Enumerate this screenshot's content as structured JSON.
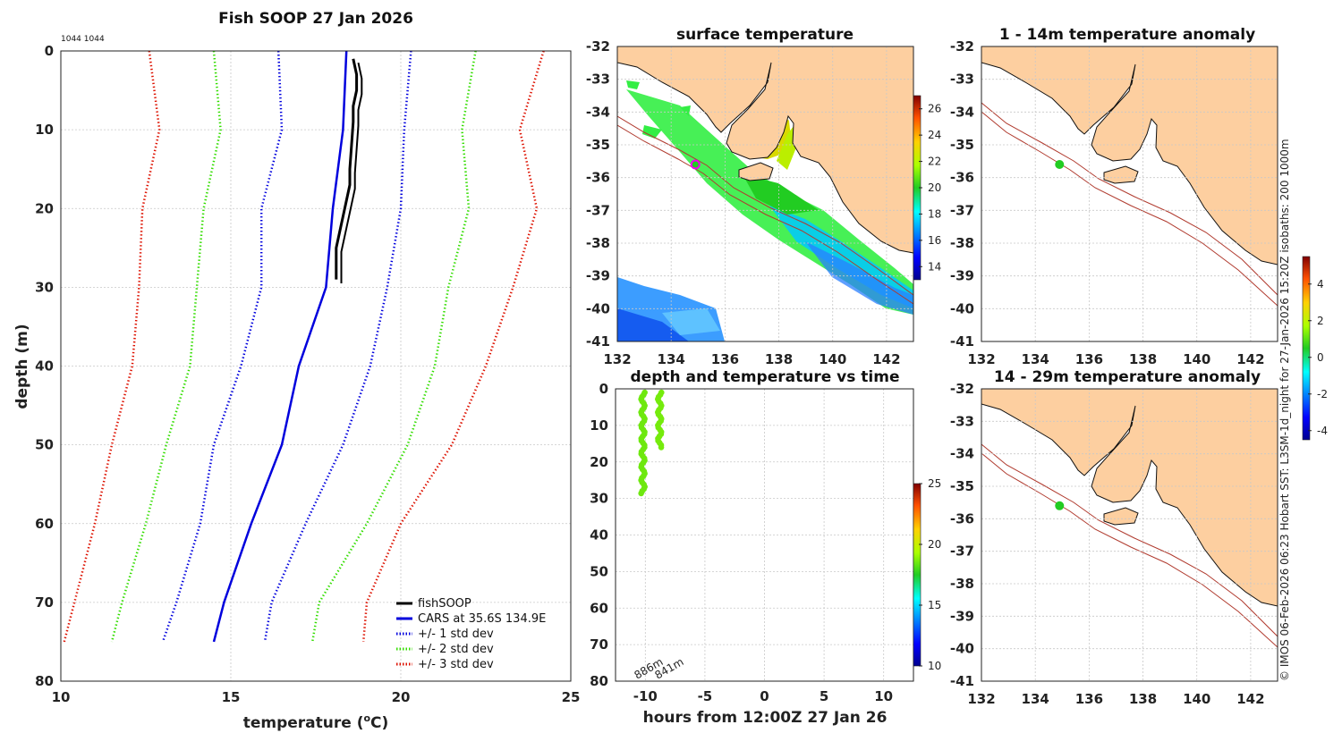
{
  "credit": "© IMOS 06-Feb-2026 06:23 Hobart SST: L3SM-1d_night for 27-Jan-2026 15:20Z isobaths: 200  1000m",
  "colors": {
    "fishsoop": "#000000",
    "cars": "#0000dd",
    "std1": "#0000dd",
    "std2": "#33dd00",
    "std3": "#dd1100",
    "land": "#fdcfa0",
    "isobath": "#b03a2e",
    "marker_fill": "#22cc22",
    "marker_ring": "#ee00ee"
  },
  "chart_data": [
    {
      "id": "profile",
      "type": "line",
      "title": "Fish SOOP 27 Jan 2026",
      "corner_label": "1044 1044",
      "xlabel_main": "temperature (",
      "xlabel_sup": "o",
      "xlabel_tail": "C)",
      "ylabel": "depth (m)",
      "xlim": [
        10,
        25
      ],
      "ylim": [
        80,
        0
      ],
      "xticks": [
        "10",
        "15",
        "20",
        "25"
      ],
      "yticks": [
        "0",
        "10",
        "20",
        "30",
        "40",
        "50",
        "60",
        "70",
        "80"
      ],
      "legend_position": "bottom-right",
      "legend": [
        "fishSOOP",
        "CARS at 35.6S 134.9E",
        "+/- 1 std dev",
        "+/- 2 std dev",
        "+/- 3 std dev"
      ],
      "depth": [
        0,
        10,
        20,
        30,
        40,
        50,
        60,
        70,
        75
      ],
      "series": [
        {
          "name": "CARS at 35.6S 134.9E",
          "style": "solid",
          "values": [
            18.4,
            18.3,
            18.0,
            17.8,
            17.0,
            16.5,
            15.6,
            14.8,
            14.5
          ]
        },
        {
          "name": "+/- 1 std dev (upper)",
          "style": "dotted",
          "values": [
            20.3,
            20.1,
            20.0,
            19.6,
            19.1,
            18.3,
            17.2,
            16.2,
            16.0
          ]
        },
        {
          "name": "+/- 1 std dev (lower)",
          "style": "dotted",
          "values": [
            16.4,
            16.5,
            15.9,
            15.9,
            15.3,
            14.5,
            14.1,
            13.4,
            13.0
          ]
        },
        {
          "name": "+/- 2 std dev (upper)",
          "style": "dotted",
          "values": [
            22.2,
            21.8,
            22.0,
            21.4,
            21.0,
            20.2,
            19.0,
            17.6,
            17.4
          ]
        },
        {
          "name": "+/- 2 std dev (lower)",
          "style": "dotted",
          "values": [
            14.5,
            14.7,
            14.2,
            14.0,
            13.8,
            13.1,
            12.5,
            11.8,
            11.5
          ]
        },
        {
          "name": "+/- 3 std dev (upper)",
          "style": "dotted",
          "values": [
            24.2,
            23.5,
            24.0,
            23.3,
            22.5,
            21.5,
            20.0,
            19.0,
            18.9
          ]
        },
        {
          "name": "+/- 3 std dev (lower)",
          "style": "dotted",
          "values": [
            12.6,
            12.9,
            12.4,
            12.3,
            12.1,
            11.5,
            11.0,
            10.4,
            10.1
          ]
        }
      ],
      "fishsoop": {
        "name": "fishSOOP",
        "depth": [
          1,
          3,
          5,
          7,
          9,
          12,
          15,
          17,
          20,
          23,
          25,
          27,
          29
        ],
        "values": [
          18.6,
          18.7,
          18.7,
          18.6,
          18.6,
          18.55,
          18.5,
          18.5,
          18.35,
          18.2,
          18.1,
          18.1,
          18.1
        ]
      }
    },
    {
      "id": "sst_map",
      "type": "heatmap",
      "title": "surface temperature",
      "xlim": [
        132,
        143
      ],
      "ylim": [
        -41,
        -32
      ],
      "xticks": [
        "132",
        "134",
        "136",
        "138",
        "140",
        "142"
      ],
      "yticks": [
        "-32",
        "-33",
        "-34",
        "-35",
        "-36",
        "-37",
        "-38",
        "-39",
        "-40",
        "-41"
      ],
      "colorbar": {
        "range": [
          13,
          27
        ],
        "ticks": [
          "14",
          "16",
          "18",
          "20",
          "22",
          "24",
          "26"
        ]
      },
      "marker": {
        "lon": 134.9,
        "lat": -35.6
      }
    },
    {
      "id": "depth_time",
      "type": "scatter",
      "title": "depth and temperature vs time",
      "xlabel": "hours from 12:00Z 27 Jan 26",
      "xlim": [
        -12.5,
        12.5
      ],
      "ylim": [
        80,
        0
      ],
      "xticks": [
        "-10",
        "-5",
        "0",
        "5",
        "10"
      ],
      "yticks": [
        "0",
        "10",
        "20",
        "30",
        "40",
        "50",
        "60",
        "70",
        "80"
      ],
      "colorbar": {
        "range": [
          10,
          25
        ],
        "ticks": [
          "10",
          "15",
          "20",
          "25"
        ]
      },
      "annotations": [
        "886m",
        "841m"
      ],
      "casts": [
        {
          "hour": -10.2,
          "depth_min": 1,
          "depth_max": 29,
          "temperature": 18.5
        },
        {
          "hour": -8.8,
          "depth_min": 1,
          "depth_max": 16,
          "temperature": 18.6
        }
      ]
    },
    {
      "id": "anom_1_14",
      "type": "heatmap",
      "title": "1 - 14m temperature anomaly",
      "xlim": [
        132,
        143
      ],
      "ylim": [
        -41,
        -32
      ],
      "xticks": [
        "132",
        "134",
        "136",
        "138",
        "140",
        "142"
      ],
      "yticks": [
        "-32",
        "-33",
        "-34",
        "-35",
        "-36",
        "-37",
        "-38",
        "-39",
        "-40",
        "-41"
      ],
      "marker": {
        "lon": 134.9,
        "lat": -35.6
      }
    },
    {
      "id": "anom_14_29",
      "type": "heatmap",
      "title": "14 - 29m temperature anomaly",
      "xlim": [
        132,
        143
      ],
      "ylim": [
        -41,
        -32
      ],
      "xticks": [
        "132",
        "134",
        "136",
        "138",
        "140",
        "142"
      ],
      "yticks": [
        "-32",
        "-33",
        "-34",
        "-35",
        "-36",
        "-37",
        "-38",
        "-39",
        "-40",
        "-41"
      ],
      "marker": {
        "lon": 134.9,
        "lat": -35.6
      }
    },
    {
      "id": "anom_colorbar",
      "type": "colorbar",
      "range": [
        -4.5,
        5.5
      ],
      "ticks": [
        "-4",
        "-2",
        "0",
        "2",
        "4"
      ]
    }
  ]
}
